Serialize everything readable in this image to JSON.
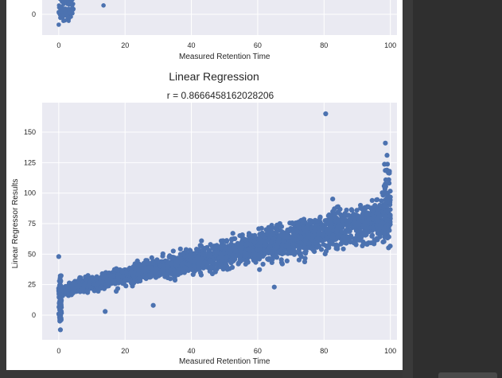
{
  "colors": {
    "plot_bg": "#eaeaf2",
    "grid": "#ffffff",
    "point": "#4c72b0",
    "dark_bg": "#383838"
  },
  "chart_data": [
    {
      "type": "scatter",
      "title": "",
      "xlabel": "Measured Retention Time",
      "ylabel": "",
      "xlim": [
        -5,
        102
      ],
      "xticks": [
        0,
        20,
        40,
        60,
        80,
        100
      ],
      "yticks_visible": [
        0
      ],
      "grid": true,
      "partially_visible": true,
      "points": [
        [
          0,
          2
        ],
        [
          1,
          4
        ],
        [
          2,
          1
        ],
        [
          3,
          5
        ],
        [
          0.5,
          7
        ],
        [
          4,
          3
        ],
        [
          13.5,
          8
        ]
      ]
    },
    {
      "type": "scatter",
      "title": "Linear Regression",
      "subtitle": "r = 0.8666458162028206",
      "xlabel": "Measured Retention Time",
      "ylabel": "Linear Regressor Results",
      "xlim": [
        -5,
        102
      ],
      "ylim": [
        -20,
        173
      ],
      "xticks": [
        0,
        20,
        40,
        60,
        80,
        100
      ],
      "yticks": [
        0,
        25,
        50,
        75,
        100,
        125,
        150
      ],
      "grid": true,
      "trend": "dense cloud rising roughly linearly from about 20 at x=0 to about 80 at x=100",
      "outliers": [
        [
          80.5,
          165
        ],
        [
          98.5,
          141
        ],
        [
          99,
          131
        ],
        [
          0,
          48
        ],
        [
          0.5,
          -12
        ],
        [
          65,
          23
        ],
        [
          14,
          3
        ],
        [
          28.5,
          8
        ],
        [
          93,
          58
        ]
      ]
    }
  ]
}
